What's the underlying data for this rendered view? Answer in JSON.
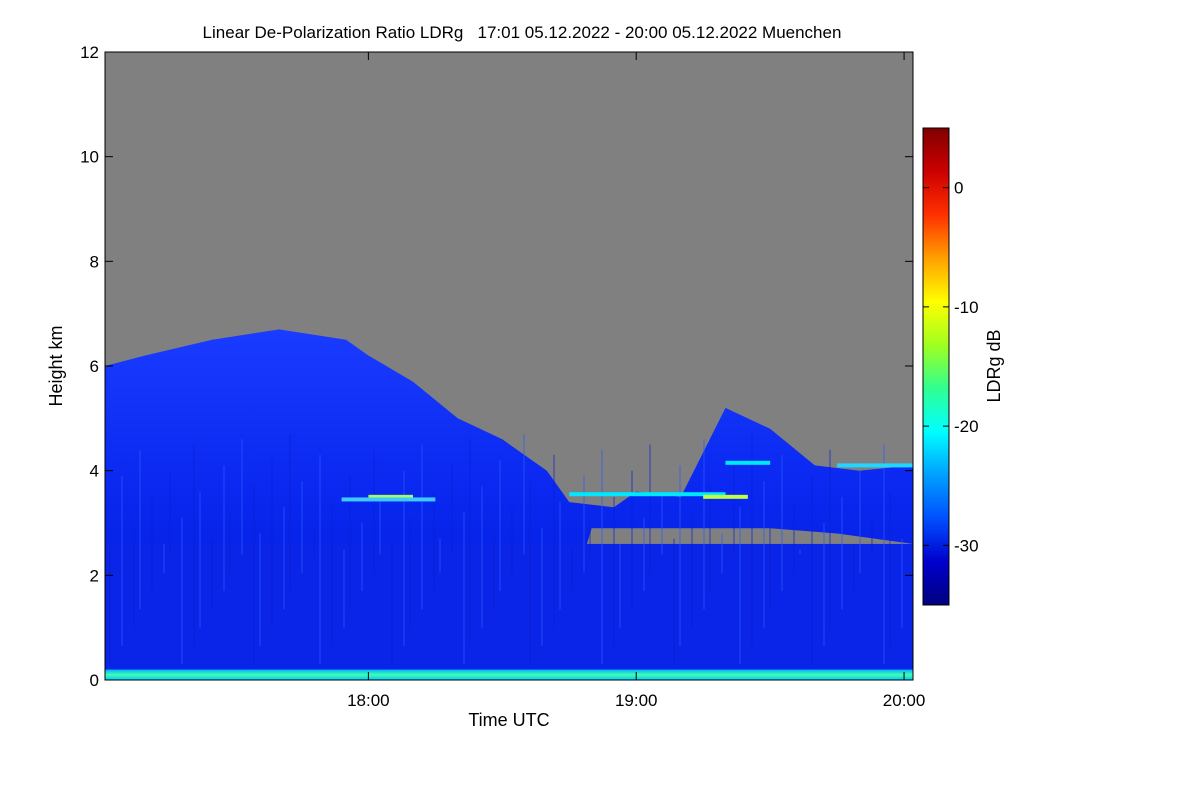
{
  "chart_data": {
    "type": "heatmap",
    "title": "Linear De-Polarization Ratio LDRg   17:01 05.12.2022 - 20:00 05.12.2022 Muenchen",
    "xlabel": "Time UTC",
    "ylabel": "Height km",
    "x_range": [
      "17:01",
      "20:02"
    ],
    "x_ticks": [
      "18:00",
      "19:00",
      "20:00"
    ],
    "ylim": [
      0,
      12
    ],
    "y_ticks": [
      0,
      2,
      4,
      6,
      8,
      10,
      12
    ],
    "colorbar": {
      "label": "LDRg dB",
      "range": [
        -35,
        5
      ],
      "ticks": [
        0,
        -10,
        -20,
        -30
      ],
      "colormap": [
        "#000080",
        "#0000cd",
        "#0050ff",
        "#00a0ff",
        "#00ffff",
        "#30ff90",
        "#a0ff20",
        "#ffff00",
        "#ffa000",
        "#ff3000",
        "#cc0000",
        "#800000"
      ]
    },
    "no_data_color": "#808080",
    "cloud_top_km": [
      {
        "time": "17:01",
        "top": 6.0
      },
      {
        "time": "17:10",
        "top": 6.2
      },
      {
        "time": "17:25",
        "top": 6.5
      },
      {
        "time": "17:40",
        "top": 6.7
      },
      {
        "time": "17:55",
        "top": 6.5
      },
      {
        "time": "18:00",
        "top": 6.2
      },
      {
        "time": "18:10",
        "top": 5.7
      },
      {
        "time": "18:20",
        "top": 5.0
      },
      {
        "time": "18:30",
        "top": 4.6
      },
      {
        "time": "18:40",
        "top": 4.0
      },
      {
        "time": "18:45",
        "top": 3.4
      },
      {
        "time": "18:55",
        "top": 3.3
      },
      {
        "time": "19:00",
        "top": 3.6
      },
      {
        "time": "19:10",
        "top": 3.5
      },
      {
        "time": "19:20",
        "top": 5.2
      },
      {
        "time": "19:30",
        "top": 4.8
      },
      {
        "time": "19:40",
        "top": 4.1
      },
      {
        "time": "19:50",
        "top": 4.0
      },
      {
        "time": "20:02",
        "top": 4.1
      }
    ],
    "cloud_base_km": [
      {
        "time": "17:01",
        "base": 0.0
      },
      {
        "time": "18:40",
        "base": 0.0
      },
      {
        "time": "18:50",
        "base": 2.9
      },
      {
        "time": "19:30",
        "base": 2.9
      },
      {
        "time": "19:45",
        "base": 2.8
      },
      {
        "time": "20:02",
        "base": 2.6
      }
    ]
  }
}
